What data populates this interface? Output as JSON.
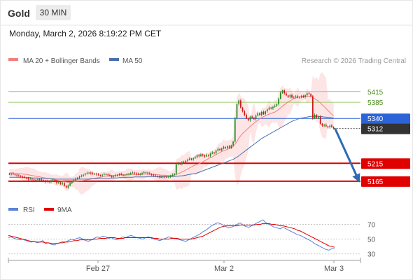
{
  "header": {
    "symbol": "Gold",
    "timeframe": "30 MIN",
    "datetime": "Monday, March 2, 2026 8:19:22 PM CET"
  },
  "legend": {
    "ma20_bb": "MA 20 + Bollinger Bands",
    "ma50": "MA 50",
    "copyright": "Research © 2026 Trading Central",
    "rsi": "RSI",
    "rsi_ma": "9MA"
  },
  "colors": {
    "ma20": "#f08080",
    "bands": "#fde0e0",
    "ma50": "#4a6fb0",
    "candle_up": "#1c8a1c",
    "candle_down": "#cc1414",
    "support": "#e00000",
    "resistance": "#9ccc6a",
    "pivot": "#2c64d8",
    "current": "#333333",
    "rsi_line": "#5b83d8",
    "rsi_ma": "#e00000",
    "arrow": "#2e6bb5"
  },
  "chart_data": [
    {
      "type": "candlestick",
      "title": "Gold",
      "ylim": [
        5120,
        5475
      ],
      "xticks": [
        "Feb 27",
        "Mar 2",
        "Mar 3"
      ],
      "levels": [
        {
          "value": 5415,
          "label": "5415",
          "kind": "resistance"
        },
        {
          "value": 5385,
          "label": "5385",
          "kind": "resistance"
        },
        {
          "value": 5340,
          "label": "5340",
          "kind": "pivot"
        },
        {
          "value": 5312,
          "label": "5312",
          "kind": "current"
        },
        {
          "value": 5215,
          "label": "5215",
          "kind": "support"
        },
        {
          "value": 5165,
          "label": "5165",
          "kind": "support"
        }
      ],
      "forecast_arrow": {
        "from": 5312,
        "to": 5165
      },
      "closes": [
        5185,
        5186,
        5184,
        5183,
        5181,
        5180,
        5178,
        5177,
        5175,
        5174,
        5171,
        5172,
        5170,
        5168,
        5169,
        5171,
        5170,
        5168,
        5166,
        5164,
        5165,
        5163,
        5166,
        5168,
        5165,
        5160,
        5162,
        5158,
        5160,
        5152,
        5148,
        5153,
        5160,
        5165,
        5168,
        5172,
        5175,
        5178,
        5180,
        5183,
        5186,
        5188,
        5189,
        5187,
        5185,
        5186,
        5184,
        5182,
        5181,
        5183,
        5185,
        5184,
        5182,
        5180,
        5177,
        5179,
        5181,
        5183,
        5185,
        5183,
        5181,
        5182,
        5184,
        5186,
        5188,
        5189,
        5187,
        5185,
        5184,
        5186,
        5188,
        5190,
        5189,
        5187,
        5185,
        5183,
        5181,
        5179,
        5178,
        5177,
        5176,
        5178,
        5177,
        5176,
        5178,
        5180,
        5183,
        5186,
        5212,
        5215,
        5213,
        5218,
        5216,
        5222,
        5225,
        5228,
        5226,
        5229,
        5232,
        5238,
        5235,
        5240,
        5237,
        5234,
        5238,
        5236,
        5242,
        5245,
        5243,
        5250,
        5255,
        5252,
        5256,
        5260,
        5258,
        5262,
        5258,
        5265,
        5275,
        5340,
        5380,
        5390,
        5370,
        5360,
        5350,
        5340,
        5335,
        5345,
        5342,
        5338,
        5348,
        5355,
        5350,
        5358,
        5352,
        5360,
        5365,
        5370,
        5368,
        5372,
        5375,
        5380,
        5395,
        5412,
        5418,
        5410,
        5404,
        5400,
        5405,
        5398,
        5400,
        5402,
        5398,
        5400,
        5402,
        5399,
        5405,
        5410,
        5408,
        5402,
        5340,
        5350,
        5342,
        5345,
        5325,
        5320,
        5322,
        5318,
        5315,
        5320,
        5316,
        5312
      ],
      "ma20": [
        5188,
        5188,
        5188,
        5187,
        5187,
        5186,
        5186,
        5185,
        5185,
        5184,
        5183,
        5182,
        5181,
        5180,
        5179,
        5178,
        5177,
        5176,
        5175,
        5174,
        5173,
        5172,
        5171,
        5170,
        5169,
        5168,
        5167,
        5166,
        5165,
        5164,
        5163,
        5162,
        5163,
        5163,
        5164,
        5164,
        5165,
        5166,
        5166,
        5167,
        5168,
        5169,
        5170,
        5171,
        5172,
        5173,
        5174,
        5175,
        5176,
        5177,
        5178,
        5179,
        5180,
        5180,
        5181,
        5181,
        5182,
        5182,
        5183,
        5183,
        5183,
        5183,
        5184,
        5184,
        5184,
        5184,
        5184,
        5184,
        5184,
        5184,
        5184,
        5185,
        5185,
        5185,
        5185,
        5184,
        5184,
        5184,
        5183,
        5183,
        5182,
        5182,
        5182,
        5181,
        5181,
        5181,
        5181,
        5182,
        5184,
        5186,
        5188,
        5191,
        5193,
        5196,
        5199,
        5202,
        5205,
        5208,
        5210,
        5212,
        5214,
        5216,
        5219,
        5222,
        5225,
        5228,
        5231,
        5233,
        5236,
        5239,
        5242,
        5245,
        5248,
        5250,
        5252,
        5254,
        5256,
        5258,
        5262,
        5268,
        5276,
        5285,
        5292,
        5298,
        5303,
        5308,
        5313,
        5318,
        5322,
        5327,
        5331,
        5335,
        5339,
        5342,
        5345,
        5347,
        5350,
        5352,
        5354,
        5356,
        5358,
        5361,
        5365,
        5369,
        5374,
        5378,
        5382,
        5386,
        5389,
        5392,
        5395,
        5397,
        5399,
        5400,
        5401,
        5402,
        5402,
        5402,
        5402,
        5401,
        5398,
        5395,
        5392,
        5388,
        5383,
        5378,
        5373,
        5368,
        5362,
        5357,
        5352,
        5347
      ],
      "ma50": [
        5176,
        5176,
        5176,
        5176,
        5176,
        5176,
        5176,
        5176,
        5175,
        5175,
        5175,
        5175,
        5174,
        5174,
        5174,
        5174,
        5173,
        5173,
        5173,
        5173,
        5172,
        5172,
        5172,
        5172,
        5171,
        5171,
        5171,
        5171,
        5171,
        5171,
        5171,
        5171,
        5171,
        5171,
        5171,
        5171,
        5171,
        5171,
        5171,
        5171,
        5171,
        5171,
        5171,
        5172,
        5172,
        5172,
        5172,
        5172,
        5172,
        5172,
        5173,
        5173,
        5173,
        5173,
        5174,
        5174,
        5174,
        5174,
        5175,
        5175,
        5175,
        5175,
        5176,
        5176,
        5176,
        5176,
        5177,
        5177,
        5177,
        5177,
        5177,
        5177,
        5177,
        5178,
        5178,
        5178,
        5178,
        5178,
        5178,
        5178,
        5178,
        5178,
        5178,
        5178,
        5178,
        5178,
        5178,
        5178,
        5179,
        5179,
        5180,
        5180,
        5181,
        5182,
        5183,
        5184,
        5185,
        5186,
        5187,
        5188,
        5190,
        5192,
        5194,
        5196,
        5198,
        5200,
        5202,
        5204,
        5206,
        5208,
        5210,
        5212,
        5214,
        5216,
        5218,
        5220,
        5222,
        5224,
        5226,
        5229,
        5232,
        5236,
        5240,
        5244,
        5248,
        5252,
        5256,
        5260,
        5264,
        5268,
        5272,
        5276,
        5280,
        5284,
        5287,
        5290,
        5293,
        5296,
        5299,
        5302,
        5305,
        5308,
        5311,
        5314,
        5317,
        5320,
        5323,
        5326,
        5329,
        5332,
        5334,
        5336,
        5338,
        5340,
        5341,
        5342,
        5343,
        5344,
        5345,
        5346,
        5346,
        5346,
        5346,
        5346,
        5345,
        5345,
        5344,
        5344,
        5343,
        5343,
        5342,
        5342
      ]
    },
    {
      "type": "line",
      "title": "RSI",
      "ylim": [
        25,
        78
      ],
      "yticks": [
        70,
        50,
        30
      ],
      "series": [
        {
          "name": "RSI",
          "values": [
            52,
            53,
            51,
            50,
            49,
            50,
            48,
            47,
            46,
            47,
            45,
            46,
            48,
            44,
            45,
            43,
            42,
            44,
            45,
            47,
            46,
            48,
            50,
            49,
            51,
            52,
            50,
            48,
            47,
            49,
            51,
            53,
            52,
            54,
            53,
            51,
            52,
            50,
            49,
            51,
            53,
            52,
            54,
            55,
            53,
            52,
            51,
            50,
            52,
            53,
            51,
            50,
            49,
            48,
            50,
            51,
            53,
            52,
            51,
            50,
            49,
            48,
            47,
            49,
            51,
            53,
            55,
            57,
            60,
            62,
            65,
            68,
            70,
            72,
            71,
            69,
            67,
            65,
            66,
            68,
            70,
            72,
            69,
            67,
            66,
            68,
            70,
            72,
            74,
            76,
            72,
            70,
            68,
            66,
            65,
            64,
            66,
            64,
            62,
            60,
            58,
            56,
            55,
            53,
            51,
            49,
            47,
            44,
            42,
            40,
            38,
            36,
            35,
            37,
            38
          ]
        },
        {
          "name": "9MA",
          "values": [
            55,
            54,
            53,
            52,
            51,
            50,
            49,
            48,
            47,
            47,
            46,
            46,
            46,
            45,
            45,
            44,
            44,
            44,
            45,
            45,
            46,
            46,
            47,
            48,
            48,
            49,
            49,
            49,
            49,
            49,
            50,
            50,
            51,
            51,
            51,
            52,
            52,
            52,
            51,
            51,
            51,
            52,
            52,
            52,
            52,
            52,
            52,
            52,
            52,
            52,
            52,
            51,
            51,
            50,
            50,
            50,
            50,
            51,
            51,
            51,
            50,
            50,
            50,
            50,
            50,
            51,
            52,
            53,
            54,
            56,
            58,
            60,
            62,
            64,
            66,
            67,
            68,
            68,
            68,
            68,
            68,
            69,
            69,
            69,
            69,
            69,
            69,
            70,
            70,
            71,
            71,
            71,
            70,
            70,
            69,
            68,
            68,
            67,
            66,
            65,
            64,
            62,
            61,
            59,
            57,
            55,
            53,
            51,
            49,
            47,
            45,
            43,
            41,
            40,
            39
          ]
        }
      ]
    }
  ]
}
